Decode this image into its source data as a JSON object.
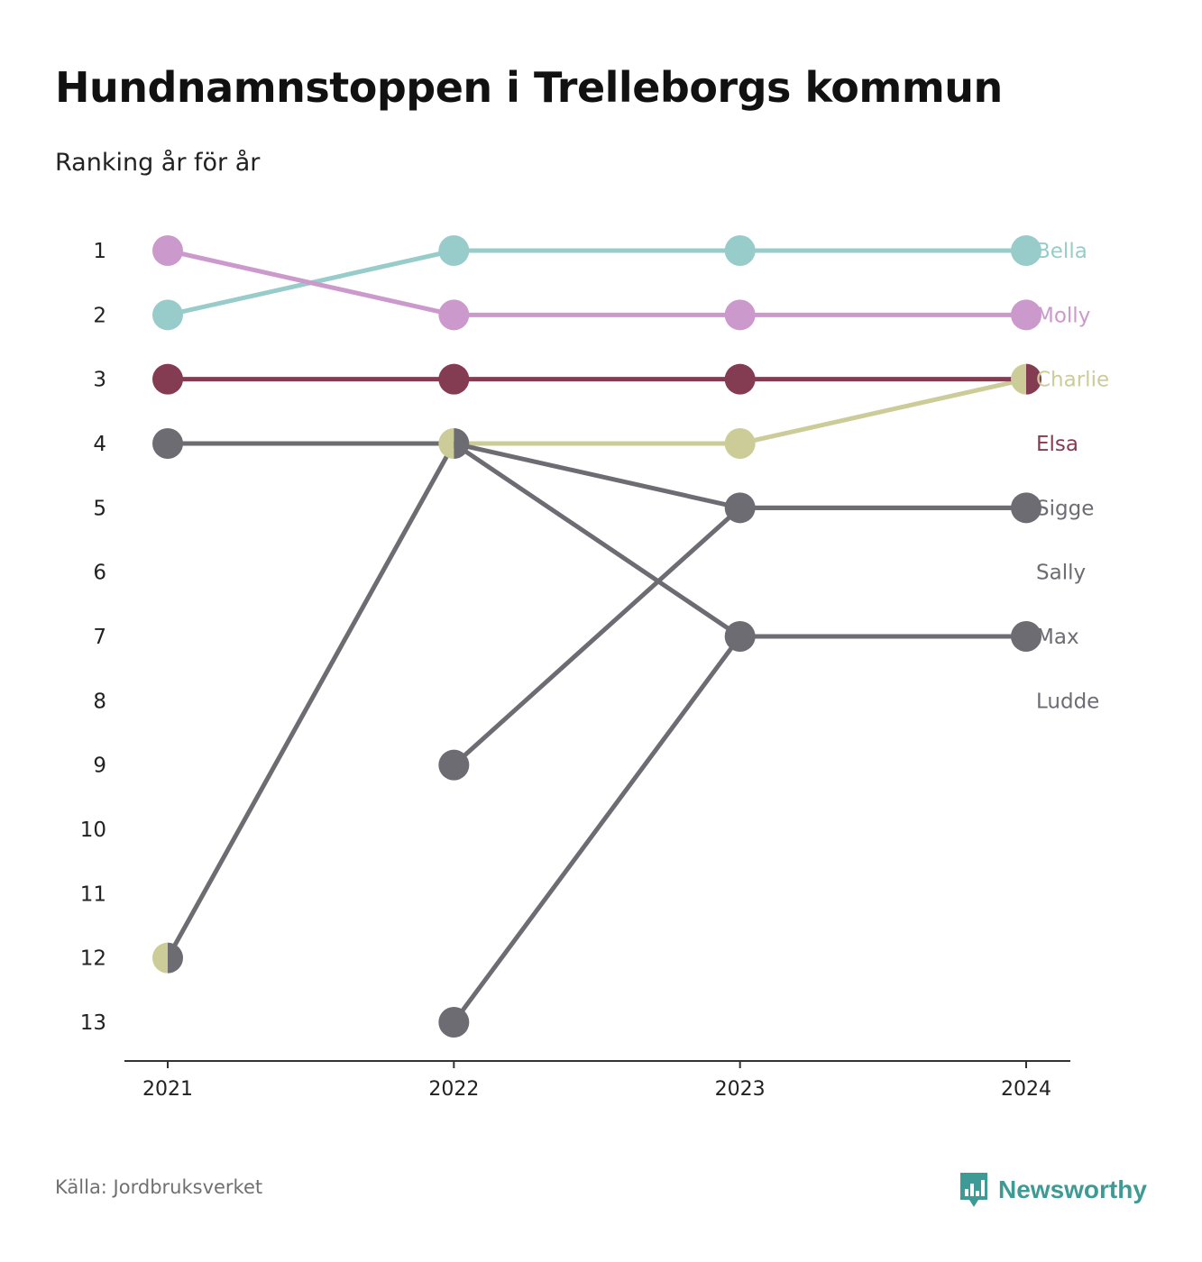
{
  "title": "Hundnamnstoppen i Trelleborgs kommun",
  "subtitle": "Ranking år för år",
  "source": "Källa: Jordbruksverket",
  "brand": {
    "name": "Newsworthy",
    "icon": "newsworthy-logo-icon",
    "color": "#3e9a94"
  },
  "chart_data": {
    "type": "line",
    "chart_kind": "bump",
    "x": [
      "2021",
      "2022",
      "2023",
      "2024"
    ],
    "y_reversed": true,
    "y_ticks": [
      "1",
      "2",
      "3",
      "4",
      "5",
      "6",
      "7",
      "8",
      "9",
      "10",
      "11",
      "12",
      "13"
    ],
    "ylim": [
      1,
      13
    ],
    "grid": false,
    "legend": "direct labels at right",
    "series": [
      {
        "name": "Bella",
        "color": "#97ccca",
        "values": [
          2,
          1,
          1,
          1
        ]
      },
      {
        "name": "Molly",
        "color": "#cc99cc",
        "values": [
          1,
          2,
          2,
          2
        ]
      },
      {
        "name": "Charlie",
        "color": "#cccc99",
        "values": [
          12,
          4,
          4,
          3
        ]
      },
      {
        "name": "Elsa",
        "color": "#843c52",
        "values": [
          3,
          3,
          3,
          3
        ]
      },
      {
        "name": "Sigge",
        "color": "#6d6c73",
        "values": [
          null,
          9,
          5,
          5
        ]
      },
      {
        "name": "Sally",
        "color": "#6d6c73",
        "values": [
          12,
          4,
          7,
          7
        ]
      },
      {
        "name": "Max",
        "color": "#6d6c73",
        "values": [
          null,
          13,
          7,
          7
        ]
      },
      {
        "name": "Ludde",
        "color": "#6d6c73",
        "values": [
          4,
          4,
          5,
          5
        ]
      }
    ]
  }
}
